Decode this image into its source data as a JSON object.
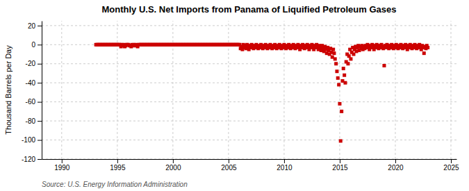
{
  "chart_data": {
    "type": "scatter",
    "title": "Monthly U.S. Net Imports from Panama of Liquified Petroleum Gases",
    "ylabel": "Thousand Barrels per Day",
    "source": "Source: U.S. Energy Information Administration",
    "xlim": [
      1988.2,
      2025.5
    ],
    "ylim": [
      -120,
      25
    ],
    "xticks": [
      1990,
      1995,
      2000,
      2005,
      2010,
      2015,
      2020,
      2025
    ],
    "yticks": [
      20,
      0,
      -20,
      -40,
      -60,
      -80,
      -100,
      -120
    ],
    "grid": true,
    "marker": "square",
    "color": "#cc0000",
    "x": [
      1993.08,
      1993.17,
      1993.25,
      1993.33,
      1993.42,
      1993.5,
      1993.58,
      1993.67,
      1993.75,
      1993.83,
      1993.92,
      1994,
      1994.08,
      1994.17,
      1994.25,
      1994.33,
      1994.42,
      1994.5,
      1994.58,
      1994.67,
      1994.75,
      1994.83,
      1994.92,
      1995,
      1995.08,
      1995.17,
      1995.25,
      1995.33,
      1995.42,
      1995.5,
      1995.58,
      1995.67,
      1995.75,
      1995.83,
      1995.92,
      1996,
      1996.08,
      1996.17,
      1996.25,
      1996.33,
      1996.42,
      1996.5,
      1996.58,
      1996.67,
      1996.75,
      1996.83,
      1996.92,
      1997,
      1997.08,
      1997.17,
      1997.25,
      1997.33,
      1997.42,
      1997.5,
      1997.58,
      1997.67,
      1997.75,
      1997.83,
      1997.92,
      1998,
      1998.08,
      1998.17,
      1998.25,
      1998.33,
      1998.42,
      1998.5,
      1998.58,
      1998.67,
      1998.75,
      1998.83,
      1998.92,
      1999,
      1999.08,
      1999.17,
      1999.25,
      1999.33,
      1999.42,
      1999.5,
      1999.58,
      1999.67,
      1999.75,
      1999.83,
      1999.92,
      2000,
      2000.08,
      2000.17,
      2000.25,
      2000.33,
      2000.42,
      2000.5,
      2000.58,
      2000.67,
      2000.75,
      2000.83,
      2000.92,
      2001,
      2001.08,
      2001.17,
      2001.25,
      2001.33,
      2001.42,
      2001.5,
      2001.58,
      2001.67,
      2001.75,
      2001.83,
      2001.92,
      2002,
      2002.08,
      2002.17,
      2002.25,
      2002.33,
      2002.42,
      2002.5,
      2002.58,
      2002.67,
      2002.75,
      2002.83,
      2002.92,
      2003,
      2003.08,
      2003.17,
      2003.25,
      2003.33,
      2003.42,
      2003.5,
      2003.58,
      2003.67,
      2003.75,
      2003.83,
      2003.92,
      2004,
      2004.08,
      2004.17,
      2004.25,
      2004.33,
      2004.42,
      2004.5,
      2004.58,
      2004.67,
      2004.75,
      2004.83,
      2004.92,
      2005,
      2005.08,
      2005.17,
      2005.25,
      2005.33,
      2005.42,
      2005.5,
      2005.58,
      2005.67,
      2005.75,
      2005.83,
      2005.92,
      2006,
      2006.08,
      2006.17,
      2006.25,
      2006.33,
      2006.42,
      2006.5,
      2006.58,
      2006.67,
      2006.75,
      2006.83,
      2006.92,
      2007,
      2007.08,
      2007.17,
      2007.25,
      2007.33,
      2007.42,
      2007.5,
      2007.58,
      2007.67,
      2007.75,
      2007.83,
      2007.92,
      2008,
      2008.08,
      2008.17,
      2008.25,
      2008.33,
      2008.42,
      2008.5,
      2008.58,
      2008.67,
      2008.75,
      2008.83,
      2008.92,
      2009,
      2009.08,
      2009.17,
      2009.25,
      2009.33,
      2009.42,
      2009.5,
      2009.58,
      2009.67,
      2009.75,
      2009.83,
      2009.92,
      2010,
      2010.08,
      2010.17,
      2010.25,
      2010.33,
      2010.42,
      2010.5,
      2010.58,
      2010.67,
      2010.75,
      2010.83,
      2010.92,
      2011,
      2011.08,
      2011.17,
      2011.25,
      2011.33,
      2011.42,
      2011.5,
      2011.58,
      2011.67,
      2011.75,
      2011.83,
      2011.92,
      2012,
      2012.08,
      2012.17,
      2012.25,
      2012.33,
      2012.42,
      2012.5,
      2012.58,
      2012.67,
      2012.75,
      2012.83,
      2012.92,
      2013,
      2013.08,
      2013.17,
      2013.25,
      2013.33,
      2013.42,
      2013.5,
      2013.58,
      2013.67,
      2013.75,
      2013.83,
      2013.92,
      2014,
      2014.08,
      2014.17,
      2014.25,
      2014.33,
      2014.42,
      2014.5,
      2014.58,
      2014.67,
      2014.75,
      2014.83,
      2014.92,
      2015,
      2015.08,
      2015.17,
      2015.25,
      2015.33,
      2015.42,
      2015.5,
      2015.58,
      2015.67,
      2015.75,
      2015.83,
      2015.92,
      2016,
      2016.08,
      2016.17,
      2016.25,
      2016.33,
      2016.42,
      2016.5,
      2016.58,
      2016.67,
      2016.75,
      2016.83,
      2016.92,
      2017,
      2017.08,
      2017.17,
      2017.25,
      2017.33,
      2017.42,
      2017.5,
      2017.58,
      2017.67,
      2017.75,
      2017.83,
      2017.92,
      2018,
      2018.08,
      2018.17,
      2018.25,
      2018.33,
      2018.42,
      2018.5,
      2018.58,
      2018.67,
      2018.75,
      2018.83,
      2018.92,
      2019,
      2019.08,
      2019.17,
      2019.25,
      2019.33,
      2019.42,
      2019.5,
      2019.58,
      2019.67,
      2019.75,
      2019.83,
      2019.92,
      2020,
      2020.08,
      2020.17,
      2020.25,
      2020.33,
      2020.42,
      2020.5,
      2020.58,
      2020.67,
      2020.75,
      2020.83,
      2020.92,
      2021,
      2021.08,
      2021.17,
      2021.25,
      2021.33,
      2021.42,
      2021.5,
      2021.58,
      2021.67,
      2021.75,
      2021.83,
      2021.92,
      2022,
      2022.08,
      2022.17,
      2022.25,
      2022.33,
      2022.42,
      2022.5,
      2022.58,
      2022.67,
      2022.75,
      2022.83,
      2022.92
    ],
    "values": [
      0,
      0,
      0,
      0,
      0,
      0,
      0,
      0,
      0,
      0,
      0,
      0,
      0,
      0,
      0,
      0,
      0,
      0,
      0,
      0,
      0,
      0,
      0,
      0,
      0,
      0,
      0,
      -2,
      0,
      -1,
      0,
      -2,
      -1,
      0,
      0,
      0,
      -1,
      -1,
      -2,
      0,
      -1,
      0,
      -1,
      0,
      -1,
      -2,
      0,
      0,
      0,
      0,
      0,
      0,
      0,
      0,
      0,
      0,
      0,
      0,
      0,
      0,
      0,
      0,
      0,
      0,
      0,
      0,
      0,
      0,
      0,
      0,
      0,
      0,
      0,
      0,
      0,
      0,
      0,
      0,
      0,
      0,
      0,
      0,
      0,
      0,
      0,
      0,
      0,
      0,
      0,
      0,
      0,
      0,
      0,
      0,
      0,
      0,
      0,
      0,
      0,
      0,
      0,
      0,
      0,
      0,
      0,
      0,
      0,
      0,
      0,
      0,
      0,
      0,
      0,
      0,
      0,
      0,
      0,
      0,
      0,
      0,
      0,
      0,
      0,
      0,
      0,
      0,
      0,
      0,
      0,
      0,
      0,
      0,
      0,
      0,
      0,
      0,
      0,
      0,
      0,
      0,
      0,
      0,
      0,
      0,
      0,
      0,
      0,
      0,
      0,
      0,
      0,
      0,
      0,
      0,
      0,
      0,
      -4,
      -2,
      -5,
      0,
      -3,
      -1,
      -4,
      0,
      -2,
      -5,
      -1,
      -3,
      0,
      -2,
      -4,
      -1,
      -3,
      0,
      -2,
      -4,
      -1,
      -3,
      0,
      -2,
      -4,
      -1,
      -3,
      0,
      -2,
      -4,
      -1,
      -3,
      0,
      -2,
      -4,
      -1,
      -3,
      0,
      -2,
      -4,
      -1,
      -3,
      0,
      -2,
      -4,
      -1,
      -3,
      0,
      -2,
      -4,
      -1,
      -3,
      0,
      -2,
      -4,
      -1,
      -3,
      0,
      -2,
      -4,
      -1,
      -3,
      0,
      -2,
      -5,
      -1,
      -3,
      0,
      -2,
      -4,
      -1,
      -3,
      0,
      -2,
      -5,
      -1,
      -3,
      0,
      -2,
      -5,
      -1,
      -3,
      0,
      -2,
      -5,
      -1,
      -3,
      -6,
      -1,
      -4,
      -7,
      -2,
      -5,
      -9,
      -3,
      -6,
      -10,
      -4,
      -8,
      -13,
      -5,
      -9,
      -15,
      -20,
      -28,
      -35,
      -42,
      -62,
      -101,
      -70,
      -38,
      -25,
      -32,
      -40,
      -18,
      -10,
      -20,
      -12,
      -5,
      -15,
      -8,
      -3,
      -10,
      -5,
      -2,
      -7,
      -3,
      -1,
      -6,
      -2,
      -4,
      -1,
      -5,
      -2,
      -4,
      -1,
      -3,
      0,
      -2,
      -5,
      -1,
      -3,
      0,
      -2,
      -5,
      -1,
      -3,
      0,
      -2,
      -4,
      -1,
      -3,
      0,
      -2,
      -4,
      -22,
      -1,
      -3,
      0,
      -2,
      -4,
      -1,
      -3,
      0,
      -2,
      -4,
      -1,
      -3,
      0,
      -2,
      -4,
      -1,
      -3,
      0,
      -2,
      -4,
      -1,
      -3,
      0,
      -2,
      -5,
      -1,
      -3,
      0,
      -2,
      -4,
      -1,
      -3,
      0,
      -2,
      -4,
      -1,
      -3,
      0,
      -2,
      -5,
      -1,
      -3,
      -9,
      -2,
      -4,
      -1,
      -3
    ]
  }
}
